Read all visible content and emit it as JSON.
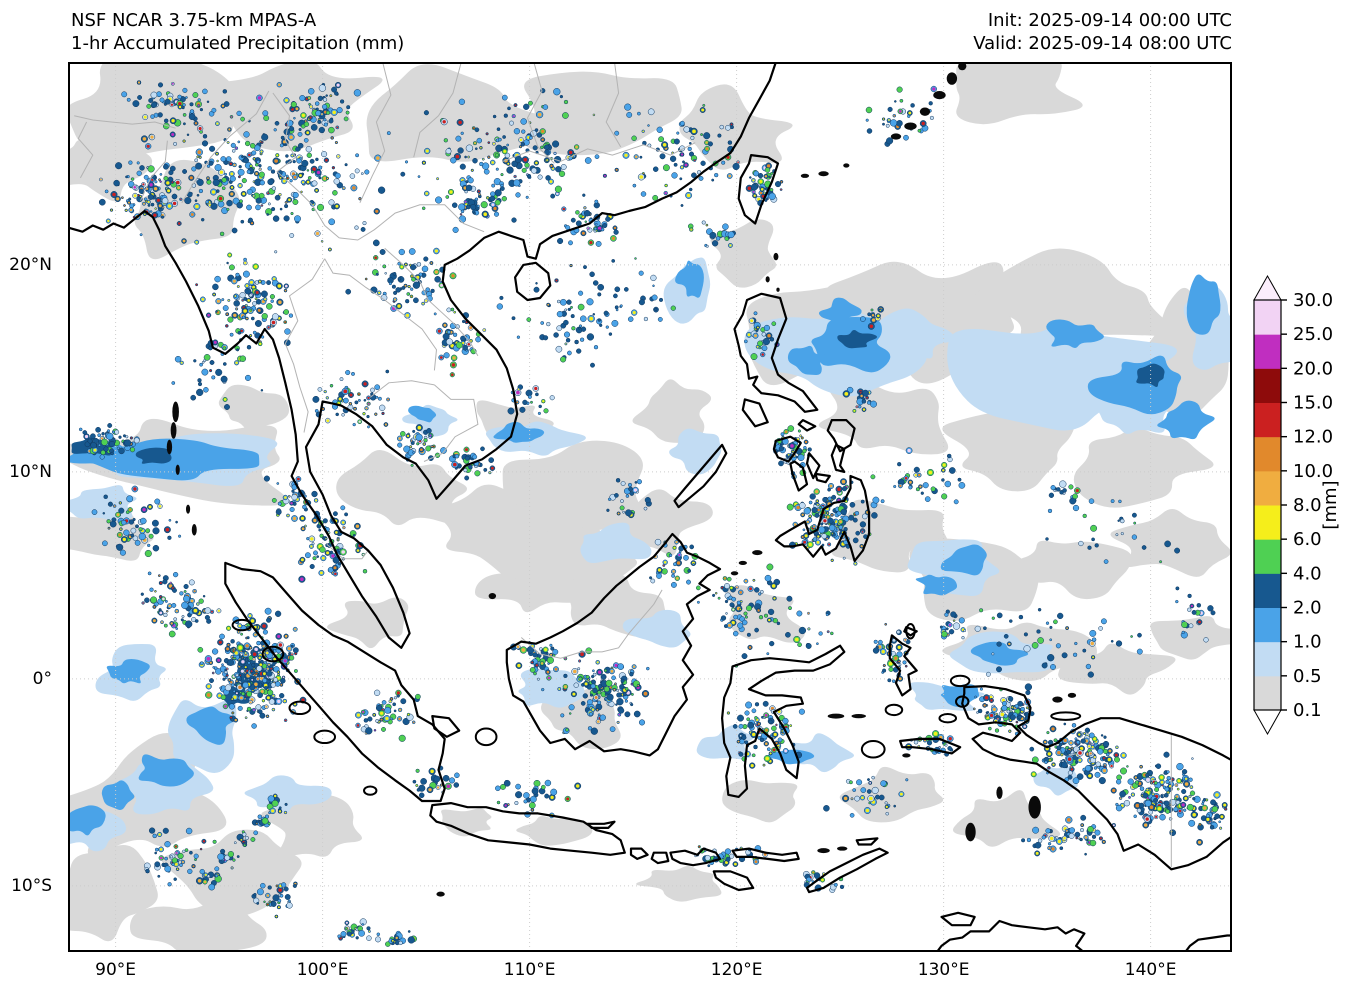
{
  "header": {
    "title_line1": "NSF NCAR 3.75-km MPAS-A",
    "title_line2": "1-hr Accumulated Precipitation (mm)",
    "init_time": "Init: 2025-09-14 00:00 UTC",
    "valid_time": "Valid: 2025-09-14 08:00 UTC"
  },
  "axes": {
    "x_ticks": [
      {
        "label": "90°E",
        "lon": 90
      },
      {
        "label": "100°E",
        "lon": 100
      },
      {
        "label": "110°E",
        "lon": 110
      },
      {
        "label": "120°E",
        "lon": 120
      },
      {
        "label": "130°E",
        "lon": 130
      },
      {
        "label": "140°E",
        "lon": 140
      }
    ],
    "y_ticks": [
      {
        "label": "20°N",
        "lat": 20
      },
      {
        "label": "10°N",
        "lat": 10
      },
      {
        "label": "0°",
        "lat": 0
      },
      {
        "label": "10°S",
        "lat": -10
      }
    ],
    "lon_min": 87.7,
    "lon_max": 143.9,
    "lat_min": -13.2,
    "lat_max": 29.8,
    "grid_color": "#cccccc"
  },
  "colorbar": {
    "unit_label": "[mm]",
    "tick_labels": [
      "0.1",
      "0.5",
      "1.0",
      "2.0",
      "4.0",
      "6.0",
      "8.0",
      "10.0",
      "12.0",
      "15.0",
      "20.0",
      "25.0",
      "30.0"
    ],
    "segment_colors_bottom_to_top": [
      "#d9d9d9",
      "#c2dcf3",
      "#4aa3e8",
      "#17588f",
      "#4fd053",
      "#f5ee1b",
      "#f0ad40",
      "#e1892c",
      "#cb2020",
      "#8e0b0b",
      "#c02ec0",
      "#f2d3f4"
    ],
    "under_color": "#ffffff",
    "over_color": "#fbeefc"
  },
  "map": {
    "ocean_color": "#ffffff",
    "coast_color": "#000000",
    "admin_border_color": "#b3b3b3",
    "patch_level_colors": [
      "#d9d9d9",
      "#c2dcf3",
      "#4aa3e8",
      "#17588f"
    ],
    "patch_fields": "[lon, lat, rx_deg, ry_deg, level]",
    "patches": [
      [
        92,
        27.3,
        4.5,
        2.2,
        0
      ],
      [
        99,
        27.8,
        4,
        2,
        0
      ],
      [
        106,
        27,
        4.5,
        2.2,
        0
      ],
      [
        113.5,
        27.5,
        4,
        2,
        0
      ],
      [
        119.5,
        26.5,
        3,
        1.8,
        0
      ],
      [
        133,
        28.5,
        3.5,
        1.5,
        0
      ],
      [
        93,
        22.5,
        3,
        2,
        0
      ],
      [
        89,
        24.8,
        2.2,
        1.6,
        0
      ],
      [
        93.5,
        10.4,
        6,
        2,
        0
      ],
      [
        89.5,
        7,
        2.5,
        1.5,
        0
      ],
      [
        96.5,
        13,
        1.5,
        1,
        0
      ],
      [
        104,
        9,
        3,
        1.8,
        0
      ],
      [
        108.5,
        7,
        3,
        2,
        0
      ],
      [
        112.5,
        9,
        3.5,
        2,
        0
      ],
      [
        116,
        7.5,
        2.5,
        1.5,
        0
      ],
      [
        110.5,
        4.5,
        2.5,
        1.2,
        0
      ],
      [
        112,
        6,
        3,
        1.5,
        0
      ],
      [
        102.5,
        2.8,
        2,
        1.3,
        0
      ],
      [
        91.5,
        -6,
        4,
        2.8,
        0
      ],
      [
        89.5,
        -10.5,
        2.8,
        2.2,
        0
      ],
      [
        95.5,
        -9.2,
        3,
        1.8,
        0
      ],
      [
        99.5,
        -7.2,
        2.5,
        1.5,
        0
      ],
      [
        94,
        -12,
        3,
        1.3,
        0
      ],
      [
        123.5,
        16.5,
        3.5,
        2.2,
        0
      ],
      [
        129.5,
        17.5,
        4.5,
        2.6,
        0
      ],
      [
        136.5,
        18,
        4.5,
        2.4,
        0
      ],
      [
        142,
        15.5,
        2.5,
        2.8,
        0
      ],
      [
        127.5,
        12.5,
        3.5,
        2,
        0
      ],
      [
        133.5,
        11,
        3.5,
        2,
        0
      ],
      [
        139.5,
        10.5,
        3,
        1.8,
        0
      ],
      [
        127,
        7,
        2.8,
        1.5,
        0
      ],
      [
        131.5,
        5,
        2.8,
        1.8,
        0
      ],
      [
        136,
        5.5,
        2.5,
        1.4,
        0
      ],
      [
        141,
        6.5,
        2.5,
        1.5,
        0
      ],
      [
        133.5,
        1.5,
        3,
        1.4,
        0
      ],
      [
        138.5,
        0.5,
        2.5,
        1.2,
        0
      ],
      [
        142,
        2,
        2,
        1,
        0
      ],
      [
        128,
        -5.5,
        2.6,
        1.3,
        0
      ],
      [
        133,
        -6.8,
        2.6,
        1.4,
        0
      ],
      [
        121.5,
        -5.8,
        1.8,
        0.9,
        0
      ],
      [
        117.5,
        -9.8,
        2,
        0.8,
        0
      ],
      [
        120.5,
        20.5,
        1.8,
        1.4,
        0
      ],
      [
        117,
        13,
        1.8,
        1.4,
        0
      ],
      [
        107,
        -6.8,
        1.5,
        0.7,
        0
      ],
      [
        111,
        -7.3,
        1.5,
        0.6,
        0
      ],
      [
        113.8,
        3.5,
        2.5,
        1.5,
        0
      ],
      [
        112.5,
        -1.8,
        2,
        1.3,
        0
      ],
      [
        121,
        3,
        2,
        1.5,
        0
      ],
      [
        109,
        12.5,
        2,
        1,
        0
      ],
      [
        93.2,
        10.5,
        5,
        1.2,
        1
      ],
      [
        89.3,
        8.6,
        1.8,
        0.9,
        1
      ],
      [
        124.8,
        15.8,
        3.5,
        2,
        1
      ],
      [
        136,
        15,
        5,
        2.8,
        1
      ],
      [
        130.8,
        5.5,
        2.2,
        1.3,
        1
      ],
      [
        133,
        1.2,
        2.2,
        0.9,
        1
      ],
      [
        92.5,
        -5.3,
        2,
        1.3,
        1
      ],
      [
        91,
        0.3,
        1.8,
        1.2,
        1
      ],
      [
        94,
        -2.6,
        2.2,
        1.6,
        1
      ],
      [
        98,
        -5.6,
        1.8,
        0.9,
        1
      ],
      [
        113.8,
        6.5,
        1.8,
        0.9,
        1
      ],
      [
        110,
        11.6,
        2.2,
        0.9,
        1
      ],
      [
        118,
        11,
        1.4,
        0.9,
        1
      ],
      [
        128.4,
        16.6,
        1.8,
        1.1,
        1
      ],
      [
        139,
        13,
        1.8,
        1.3,
        1
      ],
      [
        143,
        17,
        1.4,
        1.8,
        1
      ],
      [
        124,
        -3.6,
        1.4,
        0.8,
        1
      ],
      [
        130,
        -0.9,
        1.8,
        0.8,
        1
      ],
      [
        117.9,
        19,
        1.1,
        2,
        1
      ],
      [
        105.2,
        12.6,
        1.3,
        0.7,
        1
      ],
      [
        135.5,
        -4.8,
        1.5,
        0.8,
        1
      ],
      [
        116.5,
        2.5,
        1.5,
        0.9,
        1
      ],
      [
        119.5,
        -3.2,
        1.2,
        0.8,
        1
      ],
      [
        88.8,
        -7.2,
        1.3,
        1,
        1
      ],
      [
        110.8,
        -0.5,
        1.5,
        0.8,
        1
      ],
      [
        92.8,
        10.6,
        3.6,
        0.8,
        2
      ],
      [
        88.9,
        10.8,
        1.3,
        0.6,
        2
      ],
      [
        125.4,
        16.1,
        2.2,
        1.1,
        2
      ],
      [
        123.4,
        15.3,
        0.9,
        0.7,
        2
      ],
      [
        139.7,
        14.3,
        2.2,
        1.3,
        2
      ],
      [
        141.6,
        12.4,
        1.3,
        0.9,
        2
      ],
      [
        142.6,
        18,
        0.9,
        1.3,
        2
      ],
      [
        136.2,
        16.6,
        1.3,
        0.7,
        2
      ],
      [
        131,
        5.8,
        1.1,
        0.7,
        2
      ],
      [
        129.6,
        4.6,
        0.9,
        0.5,
        2
      ],
      [
        132.6,
        1.2,
        1.3,
        0.5,
        2
      ],
      [
        92.2,
        -4.4,
        1.3,
        0.7,
        2
      ],
      [
        94.6,
        -2.1,
        1.3,
        0.9,
        2
      ],
      [
        90.6,
        0.3,
        0.9,
        0.6,
        2
      ],
      [
        109.6,
        11.8,
        1.1,
        0.5,
        2
      ],
      [
        104.9,
        12.8,
        0.7,
        0.4,
        2
      ],
      [
        122.6,
        -3.8,
        0.9,
        0.4,
        2
      ],
      [
        130.6,
        -0.8,
        1.1,
        0.5,
        2
      ],
      [
        117.9,
        19.4,
        0.7,
        1.1,
        2
      ],
      [
        125,
        17.8,
        0.8,
        0.5,
        2
      ],
      [
        88.5,
        -6.8,
        0.9,
        0.7,
        2
      ],
      [
        90.3,
        -5.6,
        0.8,
        0.6,
        2
      ],
      [
        89,
        11.2,
        1,
        0.5,
        3
      ],
      [
        91.8,
        10.7,
        0.8,
        0.4,
        3
      ],
      [
        125.7,
        16.3,
        0.9,
        0.5,
        3
      ],
      [
        140,
        14.6,
        0.8,
        0.5,
        3
      ],
      [
        96.5,
        0.3,
        0.8,
        0.8,
        3
      ],
      [
        95.8,
        -0.8,
        0.6,
        0.5,
        3
      ]
    ],
    "cluster_fields": "[lon, lat, dlon, dlat, n_cells, warm_fraction]",
    "clusters": [
      [
        97,
        24.5,
        8,
        4.5,
        330,
        0.35
      ],
      [
        91.5,
        23.5,
        3,
        2,
        90,
        0.45
      ],
      [
        109,
        25.5,
        6,
        3.5,
        170,
        0.3
      ],
      [
        117,
        25.5,
        4,
        3,
        90,
        0.3
      ],
      [
        121.2,
        23.8,
        1.2,
        1.7,
        45,
        0.4
      ],
      [
        96.5,
        18,
        3,
        3,
        110,
        0.4
      ],
      [
        104,
        19,
        3,
        2.5,
        70,
        0.25
      ],
      [
        106.6,
        16.5,
        1.5,
        2,
        45,
        0.3
      ],
      [
        101.5,
        13.5,
        2.5,
        2,
        55,
        0.3
      ],
      [
        104.6,
        11.4,
        1.6,
        1.4,
        45,
        0.35
      ],
      [
        107,
        10.4,
        1.5,
        1,
        32,
        0.3
      ],
      [
        100.4,
        6.5,
        2,
        2.5,
        85,
        0.4
      ],
      [
        96.6,
        0.4,
        3,
        3.4,
        340,
        0.5
      ],
      [
        93,
        3.6,
        2.6,
        2,
        80,
        0.35
      ],
      [
        91,
        7.6,
        2.6,
        2,
        60,
        0.3
      ],
      [
        103,
        -1.6,
        2,
        1.5,
        50,
        0.3
      ],
      [
        105.4,
        -5,
        1.6,
        1,
        25,
        0.3
      ],
      [
        113.6,
        -0.6,
        3,
        2.6,
        150,
        0.35
      ],
      [
        110.4,
        1,
        1.6,
        1.6,
        45,
        0.3
      ],
      [
        117,
        5.6,
        1.6,
        1.6,
        40,
        0.35
      ],
      [
        121.4,
        -2.6,
        2,
        2,
        95,
        0.35
      ],
      [
        119.6,
        -8.6,
        2.6,
        0.8,
        40,
        0.35
      ],
      [
        124.6,
        7.6,
        2.6,
        2.4,
        160,
        0.45
      ],
      [
        122.6,
        11,
        1.6,
        1.6,
        55,
        0.35
      ],
      [
        121.2,
        16.6,
        1,
        1.6,
        30,
        0.3
      ],
      [
        127.4,
        1,
        1.3,
        1.8,
        45,
        0.35
      ],
      [
        129.4,
        -3.2,
        1.6,
        0.8,
        30,
        0.3
      ],
      [
        133,
        -1.6,
        1.8,
        1.3,
        85,
        0.45
      ],
      [
        136.6,
        -3.6,
        3,
        1.8,
        150,
        0.4
      ],
      [
        140.4,
        -5.6,
        3,
        2.2,
        170,
        0.4
      ],
      [
        143,
        -6.6,
        1.2,
        1.6,
        40,
        0.35
      ],
      [
        93,
        -8.6,
        2.6,
        1.6,
        50,
        0.25
      ],
      [
        97.6,
        -10.6,
        2,
        1.2,
        35,
        0.25
      ],
      [
        110,
        13.6,
        1.6,
        1,
        20,
        0.2
      ],
      [
        114.6,
        8.6,
        1.6,
        1.6,
        25,
        0.25
      ],
      [
        126,
        13.6,
        1,
        1,
        20,
        0.3
      ],
      [
        98.6,
        8.6,
        1.6,
        1.6,
        35,
        0.3
      ],
      [
        135,
        -7.6,
        1.6,
        1,
        25,
        0.3
      ],
      [
        124,
        -9.8,
        1.6,
        0.6,
        20,
        0.3
      ],
      [
        92.6,
        27.6,
        2.6,
        1.6,
        60,
        0.3
      ],
      [
        100,
        27.6,
        2.6,
        1.6,
        60,
        0.3
      ],
      [
        107.6,
        23,
        2,
        1.6,
        50,
        0.3
      ],
      [
        113,
        22,
        2,
        1.6,
        45,
        0.3
      ],
      [
        119,
        21.6,
        1.6,
        1,
        22,
        0.3
      ],
      [
        130.4,
        2.6,
        1,
        1,
        20,
        0.3
      ],
      [
        136,
        9,
        1.2,
        0.8,
        15,
        0.25
      ],
      [
        126.6,
        17.6,
        0.8,
        0.8,
        12,
        0.3
      ],
      [
        113,
        18,
        6,
        4,
        60,
        0.08
      ],
      [
        135,
        2,
        6,
        3,
        50,
        0.08
      ],
      [
        122,
        2.6,
        4,
        3,
        45,
        0.1
      ],
      [
        95,
        15,
        3,
        2.4,
        40,
        0.25
      ],
      [
        112,
        17,
        3,
        2.4,
        30,
        0.15
      ],
      [
        129,
        9.6,
        3,
        2,
        35,
        0.25
      ],
      [
        120,
        4,
        2.6,
        2,
        45,
        0.3
      ],
      [
        110,
        -5.6,
        3,
        1.2,
        30,
        0.2
      ],
      [
        126.6,
        -5.6,
        2.4,
        1.2,
        35,
        0.3
      ],
      [
        137,
        -7.6,
        2,
        1.2,
        30,
        0.3
      ],
      [
        138,
        7,
        4,
        2.4,
        25,
        0.15
      ],
      [
        128,
        27,
        3,
        2,
        35,
        0.25
      ],
      [
        89.6,
        11.4,
        1.8,
        1.2,
        60,
        0.12
      ],
      [
        142,
        3,
        2,
        2,
        20,
        0.2
      ],
      [
        94.5,
        -9.6,
        0.8,
        0.6,
        15,
        0.3
      ],
      [
        95.4,
        -8.7,
        0.8,
        0.6,
        15,
        0.3
      ],
      [
        96.2,
        -7.8,
        0.8,
        0.6,
        15,
        0.3
      ],
      [
        97,
        -6.9,
        0.8,
        0.6,
        15,
        0.3
      ],
      [
        97.8,
        -6.1,
        0.7,
        0.5,
        12,
        0.3
      ],
      [
        101.5,
        -12.2,
        1.5,
        0.7,
        25,
        0.3
      ],
      [
        103.8,
        -12.6,
        1.5,
        0.5,
        20,
        0.25
      ]
    ],
    "speckle_palette": {
      "cold": [
        "#17588f",
        "#4aa3e8",
        "#4fd053",
        "#c2dcf3"
      ],
      "warm": [
        "#f5ee1b",
        "#f0ad40",
        "#e1892c",
        "#cb2020"
      ],
      "extreme": [
        "#c02ec0",
        "#f2d3f4"
      ]
    }
  }
}
